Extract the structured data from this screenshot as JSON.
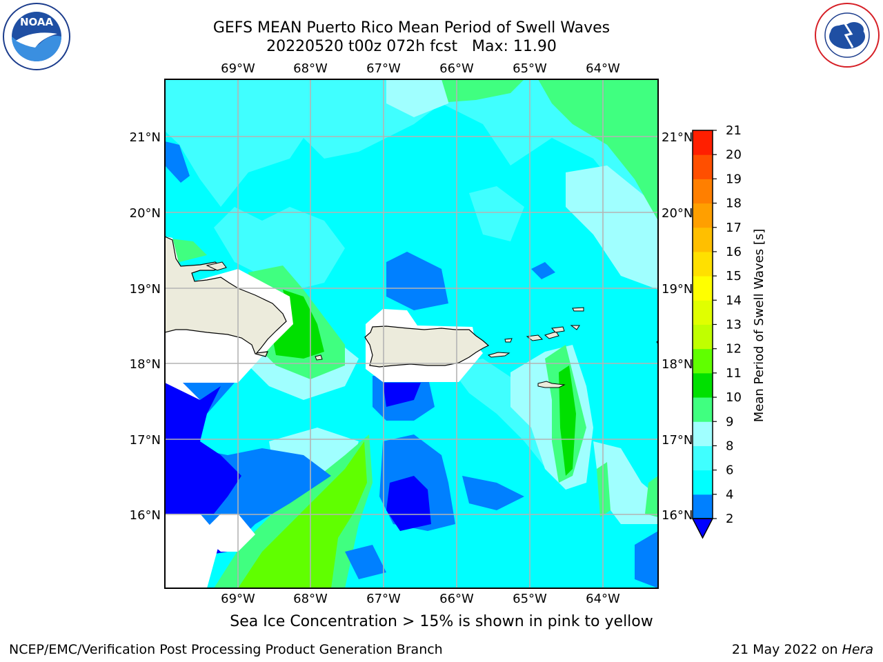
{
  "title": {
    "line1": "GEFS MEAN Puerto Rico Mean Period of Swell Waves",
    "line2": "20220520 t00z 072h fcst   Max: 11.90"
  },
  "logos": {
    "left": {
      "icon": "noaa-logo",
      "text": "NOAA"
    },
    "right": {
      "icon": "nws-logo",
      "ring_text": "NATIONAL WEATHER SERVICE"
    }
  },
  "map": {
    "lon_labels": [
      "69°W",
      "68°W",
      "67°W",
      "66°W",
      "65°W",
      "64°W"
    ],
    "lat_labels": [
      "21°N",
      "20°N",
      "19°N",
      "18°N",
      "17°N",
      "16°N"
    ],
    "colors": {
      "land": "#ecebdc",
      "grid": "#b4b4b4"
    }
  },
  "colorbar": {
    "label": "Mean Period of Swell Waves [s]",
    "ticks": [
      "2",
      "4",
      "6",
      "8",
      "9",
      "10",
      "11",
      "12",
      "13",
      "14",
      "15",
      "16",
      "17",
      "18",
      "19",
      "20",
      "21"
    ],
    "colors": [
      "#0000ff",
      "#0080ff",
      "#00ffff",
      "#40ffff",
      "#a0ffff",
      "#40ff80",
      "#00e000",
      "#60ff00",
      "#c0ff00",
      "#e0ff00",
      "#ffff00",
      "#ffe000",
      "#ffbf00",
      "#ff9f00",
      "#ff7f00",
      "#ff4f00",
      "#ff1f00",
      "#ff0000"
    ]
  },
  "caption": "Sea Ice Concentration > 15% is shown in pink to yellow",
  "footer": {
    "left": "NCEP/EMC/Verification Post Processing Product Generation Branch",
    "right_date": "21 May 2022 on ",
    "right_host": "Hera"
  }
}
